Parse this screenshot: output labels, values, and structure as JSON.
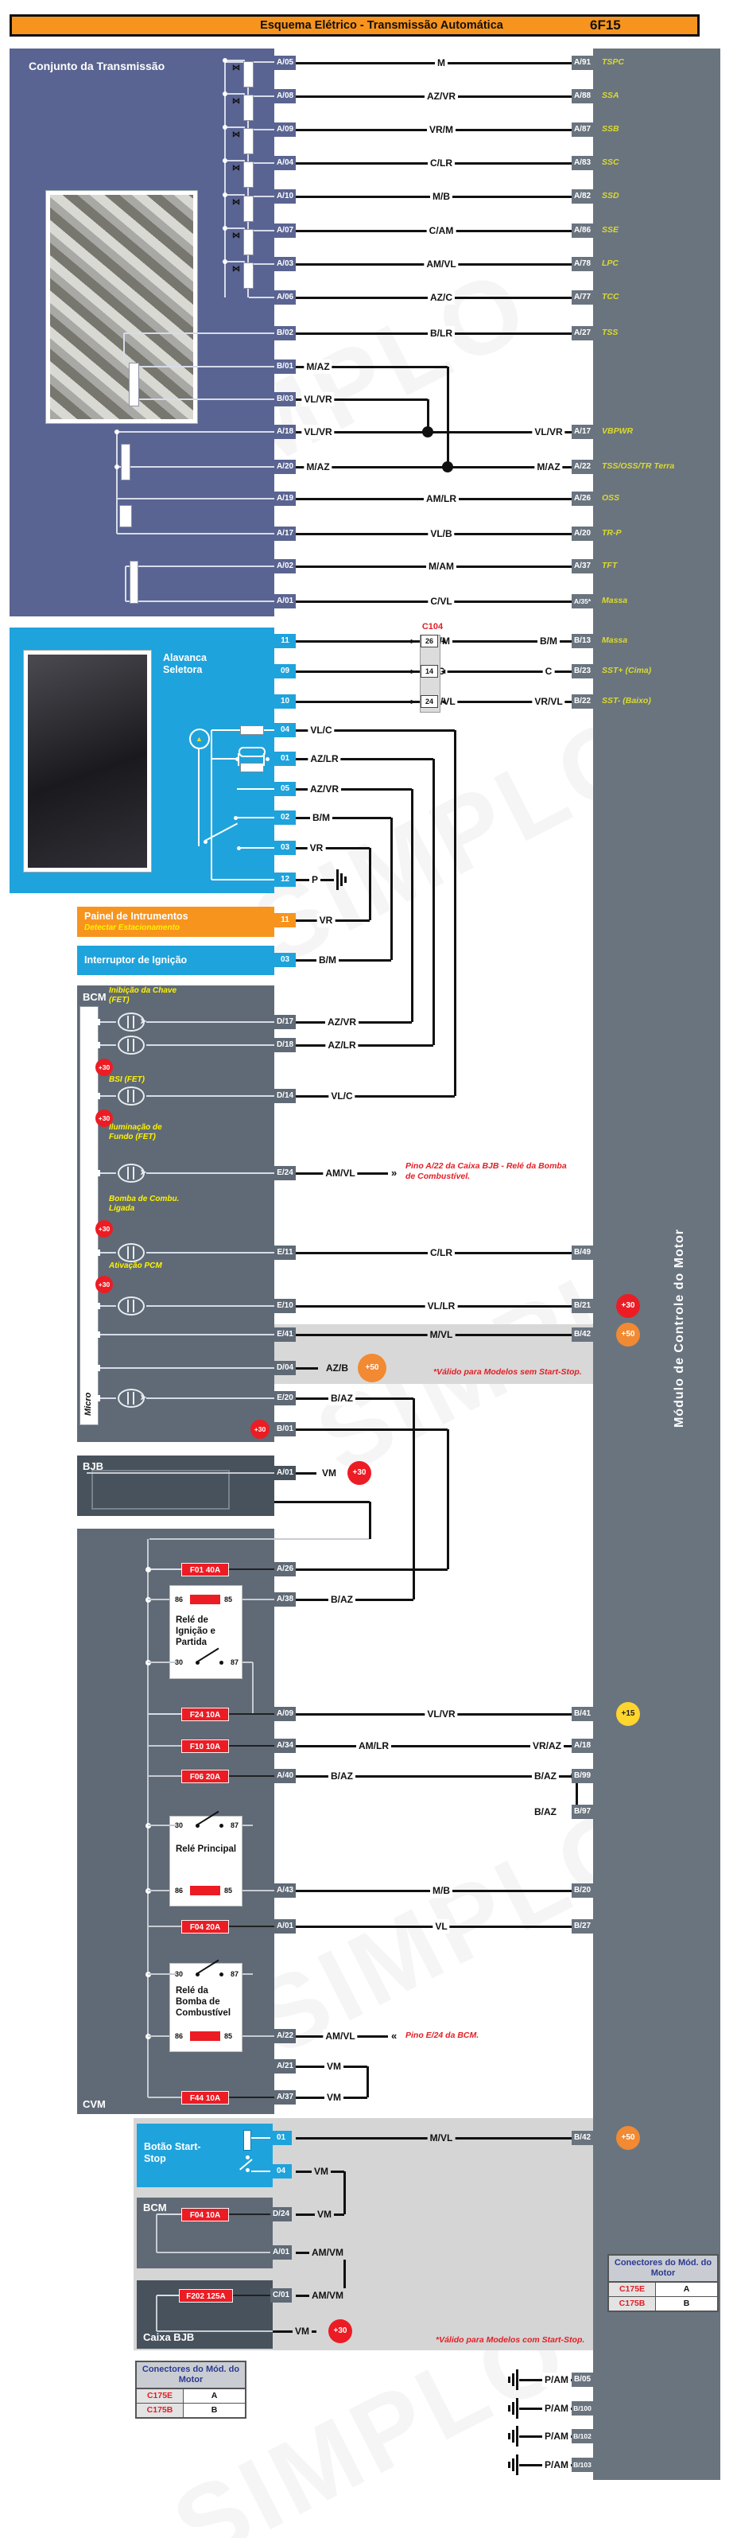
{
  "header": {
    "title": "Esquema Elétrico - Transmissão Automática",
    "code": "6F15"
  },
  "right_bar_label": "Módulo de Controle do Motor",
  "watermark": "SIMPLO",
  "connector_c104": "C104",
  "transmissao": {
    "title": "Conjunto da Transmissão",
    "rows": [
      {
        "left": "A/05",
        "wire": "M",
        "right": "A/91",
        "signal": "TSPC"
      },
      {
        "left": "A/08",
        "wire": "AZ/VR",
        "right": "A/88",
        "signal": "SSA"
      },
      {
        "left": "A/09",
        "wire": "VR/M",
        "right": "A/87",
        "signal": "SSB"
      },
      {
        "left": "A/04",
        "wire": "C/LR",
        "right": "A/83",
        "signal": "SSC"
      },
      {
        "left": "A/10",
        "wire": "M/B",
        "right": "A/82",
        "signal": "SSD"
      },
      {
        "left": "A/07",
        "wire": "C/AM",
        "right": "A/86",
        "signal": "SSE"
      },
      {
        "left": "A/03",
        "wire": "AM/VL",
        "right": "A/78",
        "signal": "LPC"
      },
      {
        "left": "A/06",
        "wire": "AZ/C",
        "right": "A/77",
        "signal": "TCC"
      },
      {
        "left": "B/02",
        "wire": "B/LR",
        "right": "A/27",
        "signal": "TSS"
      },
      {
        "left": "B/01",
        "wire": "M/AZ"
      },
      {
        "left": "B/03",
        "wire": "VL/VR"
      },
      {
        "left": "A/18",
        "wire": "VL/VR",
        "wire2": "VL/VR",
        "right": "A/17",
        "signal": "VBPWR"
      },
      {
        "left": "A/20",
        "wire": "M/AZ",
        "wire2": "M/AZ",
        "right": "A/22",
        "signal": "TSS/OSS/TR Terra"
      },
      {
        "left": "A/19",
        "wire": "AM/LR",
        "right": "A/26",
        "signal": "OSS"
      },
      {
        "left": "A/17",
        "wire": "VL/B",
        "right": "A/20",
        "signal": "TR-P"
      },
      {
        "left": "A/02",
        "wire": "M/AM",
        "right": "A/37",
        "signal": "TFT"
      },
      {
        "left": "A/01",
        "wire": "C/VL",
        "right": "A/35*",
        "signal": "Massa"
      }
    ]
  },
  "alavanca": {
    "title": "Alavanca Seletora",
    "rows": [
      {
        "left": "11",
        "wire": "B/M",
        "conn": "26",
        "wire2": "B/M",
        "right": "B/13",
        "signal": "Massa"
      },
      {
        "left": "09",
        "wire": "C",
        "conn": "14",
        "wire2": "C",
        "right": "B/23",
        "signal": "SST+ (Cima)"
      },
      {
        "left": "10",
        "wire": "VR/VL",
        "conn": "24",
        "wire2": "VR/VL",
        "right": "B/22",
        "signal": "SST- (Baixo)"
      },
      {
        "left": "04",
        "wire": "VL/C"
      },
      {
        "left": "01",
        "wire": "AZ/LR"
      },
      {
        "left": "05",
        "wire": "AZ/VR"
      },
      {
        "left": "02",
        "wire": "B/M"
      },
      {
        "left": "03",
        "wire": "VR"
      },
      {
        "left": "12",
        "wire": "P"
      }
    ]
  },
  "painel": {
    "title": "Painel de Intrumentos",
    "subtitle": "Detectar Estacionamento",
    "rows": [
      {
        "left": "11",
        "wire": "VR"
      }
    ]
  },
  "interruptor": {
    "title": "Interruptor de Ignição",
    "rows": [
      {
        "left": "03",
        "wire": "B/M"
      }
    ]
  },
  "bcm": {
    "title": "BCM",
    "micro": "Micro",
    "side_labels": [
      "Inibição da Chave (FET)",
      "BSI (FET)",
      "Iluminação de Fundo (FET)",
      "Bomba de Combu. Ligada",
      "Ativação PCM"
    ],
    "rows": [
      {
        "left": "D/17",
        "wire": "AZ/VR"
      },
      {
        "left": "D/18",
        "wire": "AZ/LR"
      },
      {
        "left": "D/14",
        "wire": "VL/C"
      },
      {
        "left": "E/24",
        "wire": "AM/VL",
        "note": "Pino A/22 da Caixa BJB - Relé da Bomba de Combustível."
      },
      {
        "left": "E/11",
        "wire": "C/LR",
        "right": "B/49"
      },
      {
        "left": "E/10",
        "wire": "VL/LR",
        "right": "B/21",
        "right_badge": "+30"
      },
      {
        "left": "E/41",
        "wire": "M/VL",
        "right": "B/42",
        "right_badge": "+50"
      },
      {
        "left": "D/04",
        "wire": "AZ/B",
        "badge": "+50"
      },
      {
        "left": "E/20",
        "wire": "B/AZ"
      },
      {
        "left": "B/01",
        "badge": "+30"
      }
    ],
    "note_sem": "*Válido para Modelos sem Start-Stop."
  },
  "bjb": {
    "title": "BJB",
    "rows": [
      {
        "left": "A/01",
        "wire": "VM",
        "badge": "+30"
      }
    ]
  },
  "cvm": {
    "title": "CVM",
    "relay_pins": {
      "coil_a": "86",
      "coil_b": "85",
      "com": "30",
      "no": "87"
    },
    "relays": [
      "Relé de Ignição e Partida",
      "Relé Principal",
      "Relé da Bomba de Combustível"
    ],
    "rows": [
      {
        "fuse": "F01 40A",
        "left": "A/26"
      },
      {
        "left": "A/38",
        "wire": "B/AZ"
      },
      {
        "fuse": "F24 10A",
        "left": "A/09",
        "wire": "VL/VR",
        "right": "B/41",
        "right_badge": "+15"
      },
      {
        "fuse": "F10 10A",
        "left": "A/34",
        "wire": "AM/LR",
        "wire2": "VR/AZ",
        "right": "A/18"
      },
      {
        "fuse": "F06 20A",
        "left": "A/40",
        "wire": "B/AZ",
        "wire2": "B/AZ",
        "right": "B/99"
      },
      {
        "wire2": "B/AZ",
        "right": "B/97"
      },
      {
        "left": "A/43",
        "wire": "M/B",
        "right": "B/20"
      },
      {
        "fuse": "F04 20A",
        "left": "A/01",
        "wire": "VL",
        "right": "B/27"
      },
      {
        "left": "A/22",
        "wire": "AM/VL",
        "note": "Pino E/24 da BCM."
      },
      {
        "left": "A/21",
        "wire": "VM"
      },
      {
        "fuse": "F44 10A",
        "left": "A/37",
        "wire": "VM"
      }
    ]
  },
  "startstop": {
    "title": "Botão Start-Stop",
    "bcm_title": "BCM",
    "caixa_title": "Caixa BJB",
    "rows": [
      {
        "left": "01",
        "wire": "M/VL",
        "right": "B/42",
        "right_badge": "+50"
      },
      {
        "left": "04",
        "wire": "VM"
      },
      {
        "fuse": "F04 10A",
        "left": "D/24",
        "wire": "VM"
      },
      {
        "left": "A/01",
        "wire": "AM/VM"
      },
      {
        "fuse": "F202 125A",
        "left": "C/01",
        "wire": "AM/VM"
      },
      {
        "wire": "VM",
        "badge": "+30"
      }
    ],
    "note_com": "*Válido para Modelos com Start-Stop."
  },
  "grounds": [
    {
      "wire": "P/AM",
      "right": "B/05"
    },
    {
      "wire": "P/AM",
      "right": "B/100"
    },
    {
      "wire": "P/AM",
      "right": "B/102"
    },
    {
      "wire": "P/AM",
      "right": "B/103"
    }
  ],
  "connector_table": {
    "header": "Conectores do Mód. do Motor",
    "rows": [
      [
        "C175E",
        "A"
      ],
      [
        "C175B",
        "B"
      ]
    ]
  },
  "colors": {
    "accent_orange": "#F7941E",
    "panel_blue": "#5A6492",
    "bright_blue": "#1FA3DC",
    "module_gray": "#5F6A76",
    "dark_gray": "#48525D",
    "bar_gray": "#6A747F",
    "fuse_red": "#EC1C24",
    "badge_red": "#EC1C24",
    "badge_orange": "#F18A33",
    "badge_yellow": "#FFD52E",
    "signal_yellow": "#DBDB2D",
    "note_red": "#E31E24",
    "label_yellow": "#FFF200"
  }
}
